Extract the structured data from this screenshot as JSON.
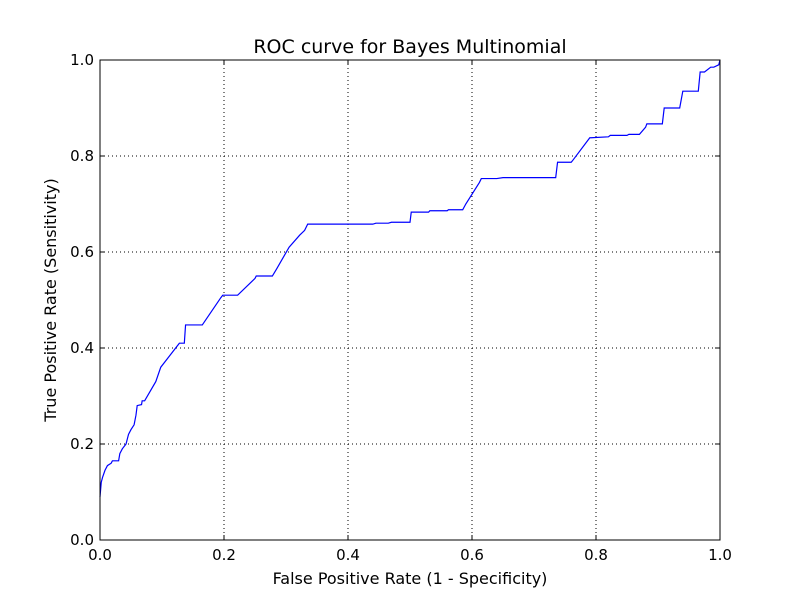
{
  "chart_data": {
    "type": "line",
    "title": "ROC curve for Bayes Multinomial",
    "xlabel": "False Positive Rate (1 - Specificity)",
    "ylabel": "True Positive Rate (Sensitivity)",
    "xlim": [
      0.0,
      1.0
    ],
    "ylim": [
      0.0,
      1.0
    ],
    "xticks": [
      "0.0",
      "0.2",
      "0.4",
      "0.6",
      "0.8",
      "1.0"
    ],
    "yticks": [
      "0.0",
      "0.2",
      "0.4",
      "0.6",
      "0.8",
      "1.0"
    ],
    "grid": true,
    "series": [
      {
        "color": "#0000ff",
        "x": [
          0.0,
          0.002,
          0.004,
          0.008,
          0.012,
          0.018,
          0.02,
          0.03,
          0.032,
          0.036,
          0.042,
          0.046,
          0.05,
          0.055,
          0.058,
          0.06,
          0.067,
          0.068,
          0.072,
          0.09,
          0.098,
          0.11,
          0.128,
          0.136,
          0.138,
          0.14,
          0.165,
          0.195,
          0.198,
          0.22,
          0.222,
          0.25,
          0.252,
          0.278,
          0.285,
          0.305,
          0.322,
          0.33,
          0.335,
          0.4,
          0.42,
          0.44,
          0.445,
          0.465,
          0.47,
          0.5,
          0.502,
          0.53,
          0.532,
          0.56,
          0.562,
          0.585,
          0.59,
          0.612,
          0.615,
          0.64,
          0.65,
          0.735,
          0.738,
          0.76,
          0.762,
          0.79,
          0.792,
          0.82,
          0.823,
          0.85,
          0.853,
          0.87,
          0.88,
          0.882,
          0.907,
          0.91,
          0.935,
          0.94,
          0.965,
          0.968,
          0.975,
          0.985,
          0.99,
          0.998,
          1.0
        ],
        "y": [
          0.09,
          0.12,
          0.13,
          0.145,
          0.155,
          0.16,
          0.165,
          0.165,
          0.18,
          0.19,
          0.2,
          0.22,
          0.23,
          0.24,
          0.26,
          0.28,
          0.282,
          0.29,
          0.29,
          0.33,
          0.36,
          0.38,
          0.41,
          0.41,
          0.448,
          0.448,
          0.448,
          0.505,
          0.51,
          0.51,
          0.51,
          0.545,
          0.55,
          0.55,
          0.565,
          0.61,
          0.635,
          0.645,
          0.658,
          0.658,
          0.658,
          0.658,
          0.66,
          0.66,
          0.662,
          0.662,
          0.683,
          0.683,
          0.686,
          0.686,
          0.688,
          0.688,
          0.7,
          0.745,
          0.753,
          0.753,
          0.755,
          0.755,
          0.787,
          0.787,
          0.79,
          0.838,
          0.838,
          0.84,
          0.843,
          0.843,
          0.845,
          0.845,
          0.86,
          0.867,
          0.867,
          0.9,
          0.9,
          0.935,
          0.935,
          0.975,
          0.975,
          0.985,
          0.985,
          0.99,
          1.0
        ]
      }
    ]
  }
}
